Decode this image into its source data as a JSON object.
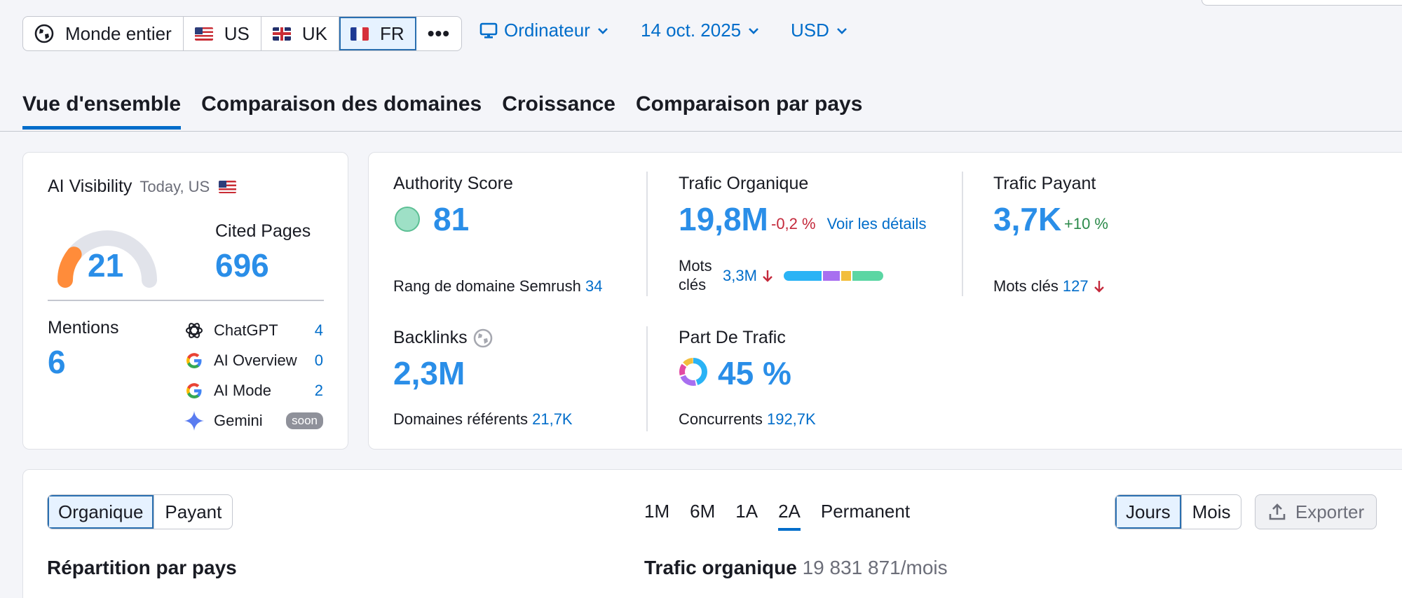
{
  "geo": {
    "worldwide": "Monde entier",
    "us": "US",
    "uk": "UK",
    "fr": "FR",
    "more": "•••"
  },
  "filters": {
    "device": "Ordinateur",
    "date": "14 oct. 2025",
    "currency": "USD"
  },
  "tabs": [
    "Vue d'ensemble",
    "Comparaison des domaines",
    "Croissance",
    "Comparaison par pays"
  ],
  "ai_visibility": {
    "title": "AI Visibility",
    "meta": "Today, US",
    "score": "21",
    "score_fraction": 0.21,
    "cited_label": "Cited Pages",
    "cited_value": "696",
    "mentions_label": "Mentions",
    "mentions_value": "6",
    "sources": [
      {
        "name": "ChatGPT",
        "count": "4"
      },
      {
        "name": "AI Overview",
        "count": "0"
      },
      {
        "name": "AI Mode",
        "count": "2"
      },
      {
        "name": "Gemini",
        "badge": "soon"
      }
    ]
  },
  "authority": {
    "title": "Authority Score",
    "value": "81",
    "rank_label": "Rang de domaine Semrush",
    "rank_value": "34"
  },
  "organic": {
    "title": "Trafic Organique",
    "value": "19,8M",
    "change": "-0,2 %",
    "details_link": "Voir les détails",
    "keywords_label": "Mots clés",
    "keywords_value": "3,3M",
    "bar_colors": [
      "#2ab3f5",
      "#a86ff0",
      "#f2be3c",
      "#5bd6a3"
    ]
  },
  "paid": {
    "title": "Trafic Payant",
    "value": "3,7K",
    "change": "+10 %",
    "keywords_label": "Mots clés",
    "keywords_value": "127"
  },
  "backlinks": {
    "title": "Backlinks",
    "value": "2,3M",
    "ref_label": "Domaines référents",
    "ref_value": "21,7K"
  },
  "traffic_share": {
    "title": "Part De Trafic",
    "value": "45 %",
    "competitors_label": "Concurrents",
    "competitors_value": "192,7K"
  },
  "chart_controls": {
    "type_options": [
      "Organique",
      "Payant"
    ],
    "periods": [
      "1M",
      "6M",
      "1A",
      "2A",
      "Permanent"
    ],
    "selected_period": "2A",
    "granularity": [
      "Jours",
      "Mois"
    ],
    "export": "Exporter"
  },
  "sections": {
    "country_breakdown": "Répartition par pays",
    "organic_traffic_label": "Trafic organique",
    "organic_traffic_value": "19 831 871/mois"
  }
}
